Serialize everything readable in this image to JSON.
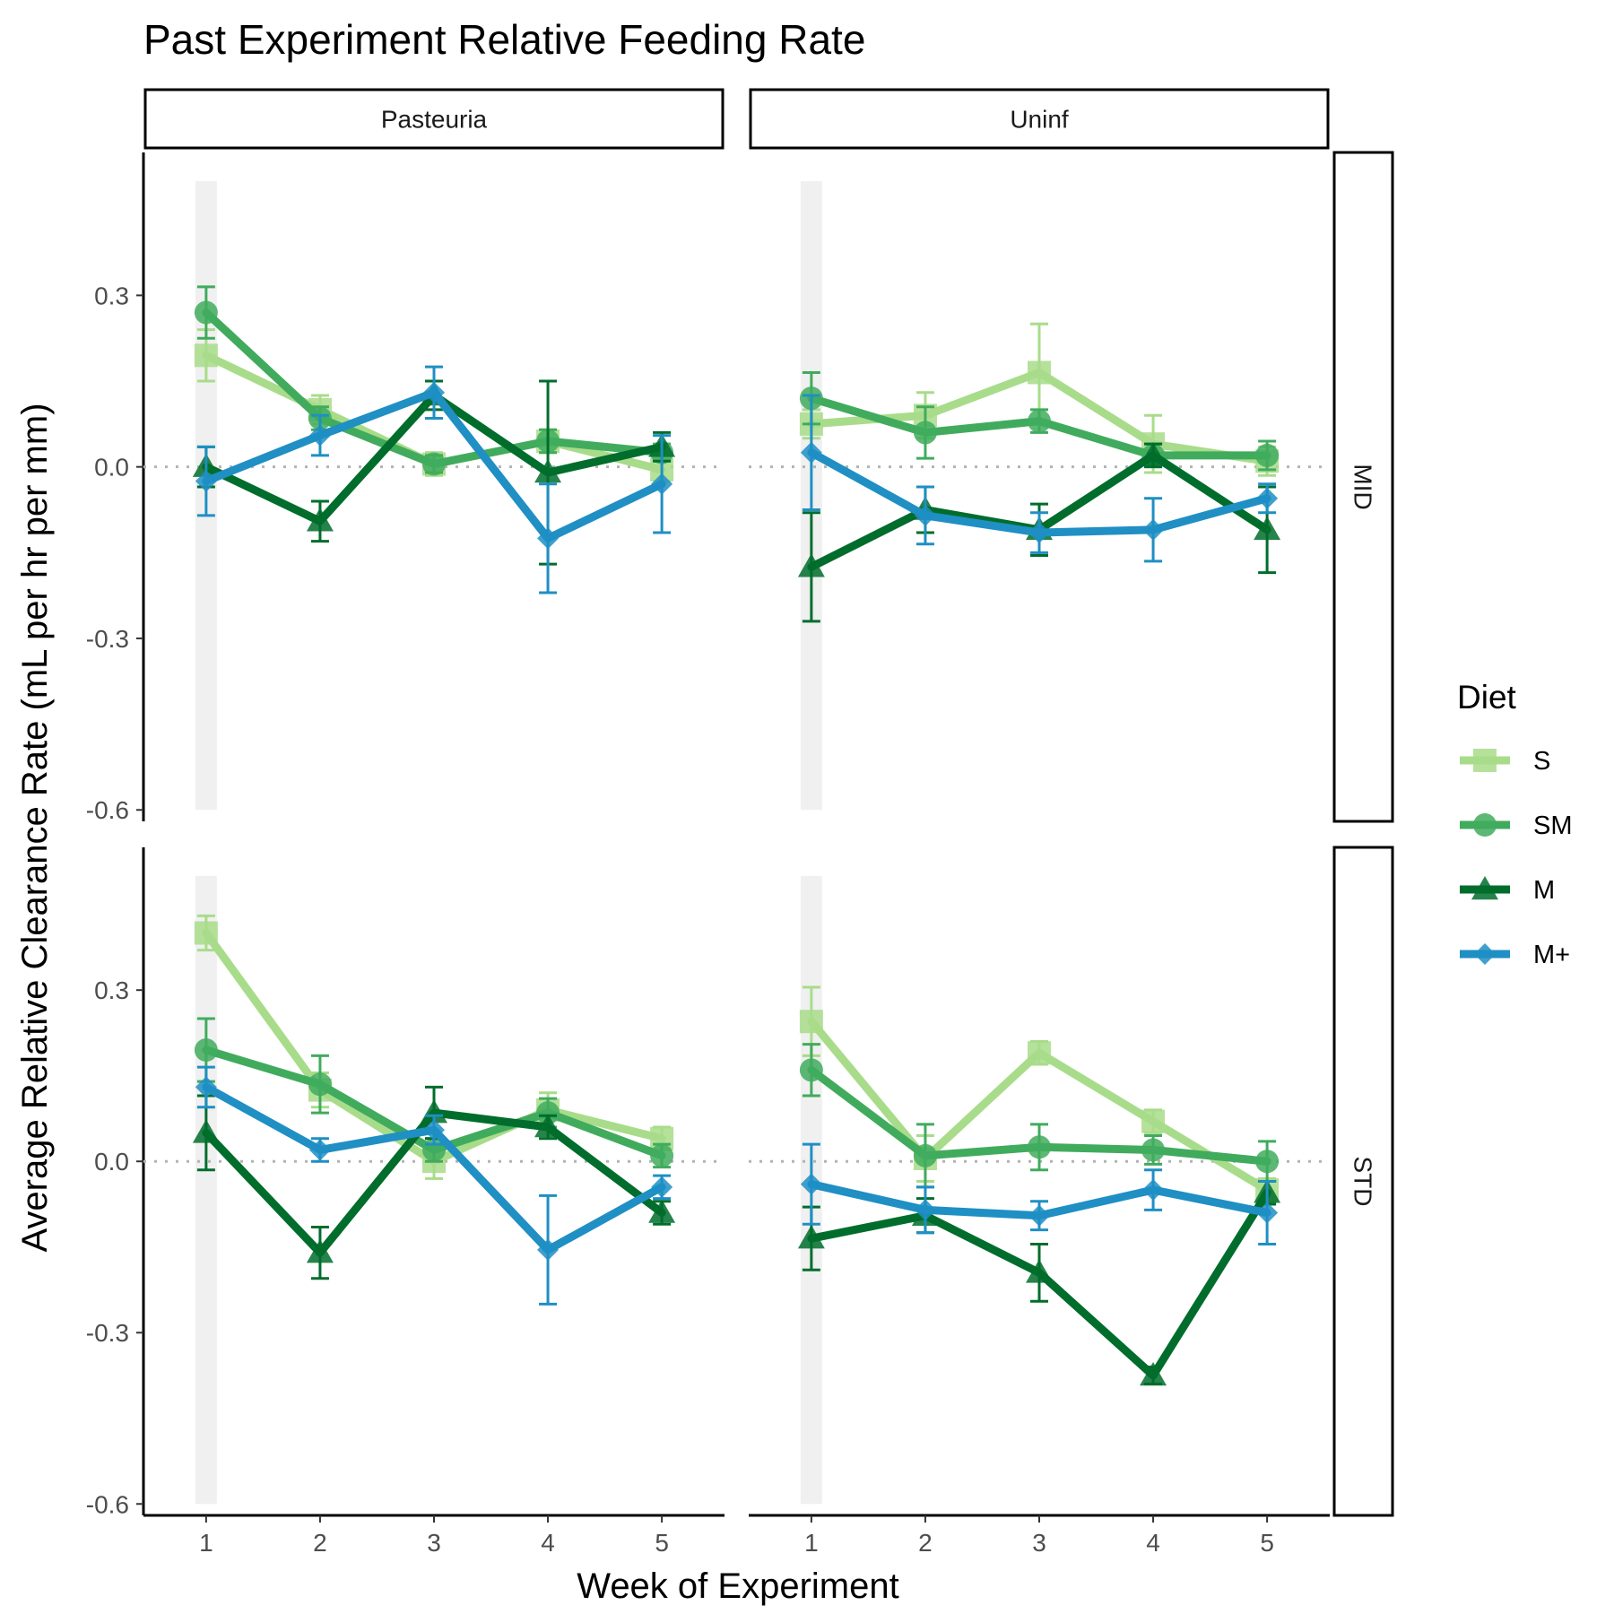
{
  "chart_data": {
    "type": "line",
    "title": "Past Experiment Relative Feeding Rate",
    "xlabel": "Week of Experiment",
    "ylabel": "Average Relative Clearance Rate (mL per hr per mm)",
    "x_ticks": [
      "1",
      "2",
      "3",
      "4",
      "5"
    ],
    "y_ticks": [
      "0.3",
      "0.0",
      "-0.3",
      "-0.6"
    ],
    "ylim": [
      -0.62,
      0.55
    ],
    "xlim": [
      0.45,
      5.55
    ],
    "reference_line": 0.0,
    "highlight_week": 1,
    "legend": {
      "title": "Diet",
      "position": "right",
      "items": [
        {
          "label": "S",
          "color": "#a8dc8a",
          "shape": "square"
        },
        {
          "label": "SM",
          "color": "#41ab5d",
          "shape": "circle"
        },
        {
          "label": "M",
          "color": "#006d2c",
          "shape": "triangle"
        },
        {
          "label": "M+",
          "color": "#1f8fc4",
          "shape": "diamond"
        }
      ]
    },
    "panels": [
      {
        "column": "Pasteuria",
        "row": "MID",
        "series": [
          {
            "name": "S",
            "x": [
              1,
              2,
              3,
              4,
              5
            ],
            "y": [
              0.195,
              0.1,
              0.005,
              0.045,
              -0.005
            ],
            "err": [
              0.045,
              0.025,
              0.02,
              0.02,
              0.02
            ]
          },
          {
            "name": "SM",
            "x": [
              1,
              2,
              3,
              4,
              5
            ],
            "y": [
              0.27,
              0.085,
              0.005,
              0.045,
              0.025
            ],
            "err": [
              0.045,
              0.02,
              0.015,
              0.02,
              0.015
            ]
          },
          {
            "name": "M",
            "x": [
              1,
              2,
              3,
              4,
              5
            ],
            "y": [
              0.0,
              -0.095,
              0.125,
              -0.01,
              0.035
            ],
            "err": [
              0.035,
              0.035,
              0.025,
              0.16,
              0.025
            ]
          },
          {
            "name": "M+",
            "x": [
              1,
              2,
              3,
              4,
              5
            ],
            "y": [
              -0.025,
              0.055,
              0.13,
              -0.125,
              -0.03
            ],
            "err": [
              0.06,
              0.035,
              0.045,
              0.095,
              0.085
            ]
          }
        ]
      },
      {
        "column": "Uninf",
        "row": "MID",
        "series": [
          {
            "name": "S",
            "x": [
              1,
              2,
              3,
              4,
              5
            ],
            "y": [
              0.075,
              0.09,
              0.165,
              0.04,
              0.01
            ],
            "err": [
              0.025,
              0.04,
              0.085,
              0.05,
              0.025
            ]
          },
          {
            "name": "SM",
            "x": [
              1,
              2,
              3,
              4,
              5
            ],
            "y": [
              0.12,
              0.06,
              0.08,
              0.02,
              0.02
            ],
            "err": [
              0.045,
              0.045,
              0.02,
              0.02,
              0.025
            ]
          },
          {
            "name": "M",
            "x": [
              1,
              2,
              3,
              4,
              5
            ],
            "y": [
              -0.175,
              -0.075,
              -0.11,
              0.02,
              -0.11
            ],
            "err": [
              0.095,
              0.04,
              0.045,
              0.02,
              0.075
            ]
          },
          {
            "name": "M+",
            "x": [
              1,
              2,
              3,
              4,
              5
            ],
            "y": [
              0.025,
              -0.085,
              -0.115,
              -0.11,
              -0.055
            ],
            "err": [
              0.1,
              0.05,
              0.035,
              0.055,
              0.025
            ]
          }
        ]
      },
      {
        "column": "Pasteuria",
        "row": "STD",
        "series": [
          {
            "name": "S",
            "x": [
              1,
              2,
              3,
              4,
              5
            ],
            "y": [
              0.4,
              0.125,
              0.0,
              0.09,
              0.04
            ],
            "err": [
              0.03,
              0.03,
              0.03,
              0.03,
              0.02
            ]
          },
          {
            "name": "SM",
            "x": [
              1,
              2,
              3,
              4,
              5
            ],
            "y": [
              0.195,
              0.135,
              0.02,
              0.085,
              0.01
            ],
            "err": [
              0.055,
              0.05,
              0.02,
              0.025,
              0.02
            ]
          },
          {
            "name": "M",
            "x": [
              1,
              2,
              3,
              4,
              5
            ],
            "y": [
              0.05,
              -0.16,
              0.085,
              0.06,
              -0.09
            ],
            "err": [
              0.065,
              0.045,
              0.045,
              0.02,
              0.02
            ]
          },
          {
            "name": "M+",
            "x": [
              1,
              2,
              3,
              4,
              5
            ],
            "y": [
              0.13,
              0.02,
              0.055,
              -0.155,
              -0.045
            ],
            "err": [
              0.035,
              0.02,
              0.025,
              0.095,
              0.02
            ]
          }
        ]
      },
      {
        "column": "Uninf",
        "row": "STD",
        "series": [
          {
            "name": "S",
            "x": [
              1,
              2,
              3,
              4,
              5
            ],
            "y": [
              0.245,
              0.005,
              0.19,
              0.07,
              -0.05
            ],
            "err": [
              0.06,
              0.04,
              0.02,
              0.02,
              0.02
            ]
          },
          {
            "name": "SM",
            "x": [
              1,
              2,
              3,
              4,
              5
            ],
            "y": [
              0.16,
              0.01,
              0.025,
              0.02,
              0.0
            ],
            "err": [
              0.045,
              0.055,
              0.04,
              0.025,
              0.035
            ]
          },
          {
            "name": "M",
            "x": [
              1,
              2,
              3,
              4,
              5
            ],
            "y": [
              -0.135,
              -0.095,
              -0.195,
              -0.375,
              -0.055
            ],
            "err": [
              0.055,
              0.03,
              0.05,
              0.015,
              0.02
            ]
          },
          {
            "name": "M+",
            "x": [
              1,
              2,
              3,
              4,
              5
            ],
            "y": [
              -0.04,
              -0.085,
              -0.095,
              -0.05,
              -0.09
            ],
            "err": [
              0.07,
              0.04,
              0.025,
              0.035,
              0.055
            ]
          }
        ]
      }
    ]
  }
}
